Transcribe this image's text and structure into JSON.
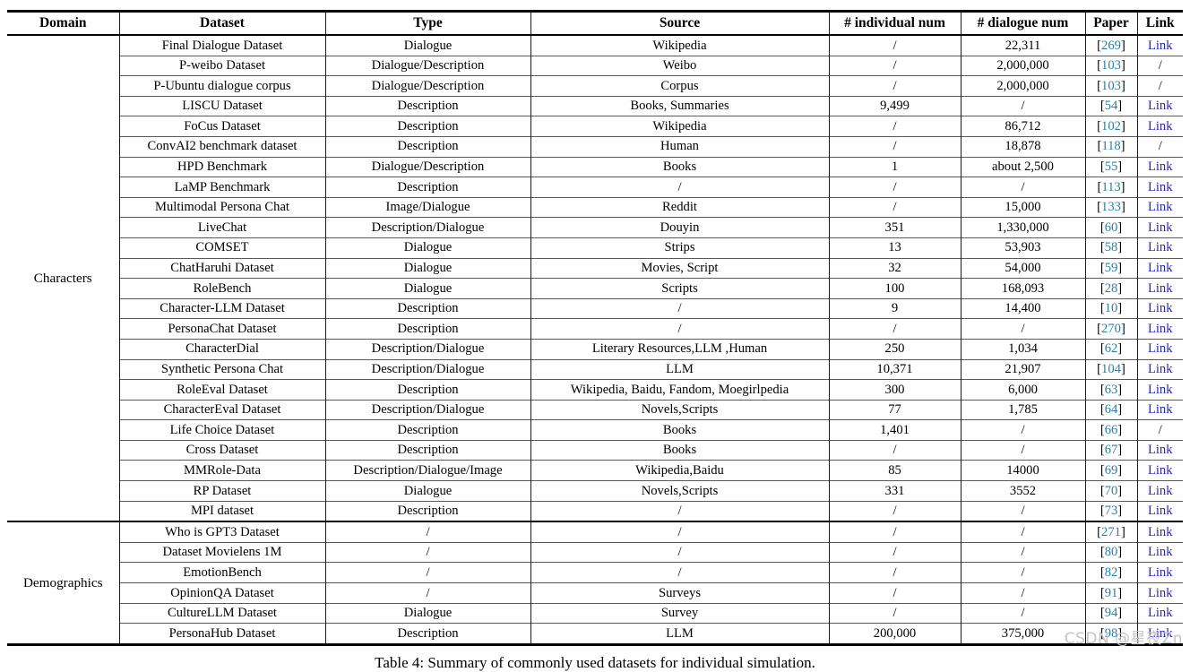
{
  "table": {
    "caption": "Table 4: Summary of commonly used datasets for individual simulation.",
    "columns": [
      "Domain",
      "Dataset",
      "Type",
      "Source",
      "# individual num",
      "# dialogue num",
      "Paper",
      "Link"
    ],
    "sections": [
      {
        "domain": "Characters",
        "rows": [
          {
            "dataset": "Final Dialogue Dataset",
            "type": "Dialogue",
            "source": "Wikipedia",
            "individual": "/",
            "dialogue": "22,311",
            "paper": "[269]",
            "link": "Link"
          },
          {
            "dataset": "P-weibo Dataset",
            "type": "Dialogue/Description",
            "source": "Weibo",
            "individual": "/",
            "dialogue": "2,000,000",
            "paper": "[103]",
            "link": "/"
          },
          {
            "dataset": "P-Ubuntu dialogue corpus",
            "type": "Dialogue/Description",
            "source": "Corpus",
            "individual": "/",
            "dialogue": "2,000,000",
            "paper": "[103]",
            "link": "/"
          },
          {
            "dataset": "LISCU Dataset",
            "type": "Description",
            "source": "Books, Summaries",
            "individual": "9,499",
            "dialogue": "/",
            "paper": "[54]",
            "link": "Link"
          },
          {
            "dataset": "FoCus Dataset",
            "type": "Description",
            "source": "Wikipedia",
            "individual": "/",
            "dialogue": "86,712",
            "paper": "[102]",
            "link": "Link"
          },
          {
            "dataset": "ConvAI2 benchmark dataset",
            "type": "Description",
            "source": "Human",
            "individual": "/",
            "dialogue": "18,878",
            "paper": "[118]",
            "link": "/"
          },
          {
            "dataset": "HPD Benchmark",
            "type": "Dialogue/Description",
            "source": "Books",
            "individual": "1",
            "dialogue": "about 2,500",
            "paper": "[55]",
            "link": "Link"
          },
          {
            "dataset": "LaMP Benchmark",
            "type": "Description",
            "source": "/",
            "individual": "/",
            "dialogue": "/",
            "paper": "[113]",
            "link": "Link"
          },
          {
            "dataset": "Multimodal Persona Chat",
            "type": "Image/Dialogue",
            "source": "Reddit",
            "individual": "/",
            "dialogue": "15,000",
            "paper": "[133]",
            "link": "Link"
          },
          {
            "dataset": "LiveChat",
            "type": "Description/Dialogue",
            "source": "Douyin",
            "individual": "351",
            "dialogue": "1,330,000",
            "paper": "[60]",
            "link": "Link"
          },
          {
            "dataset": "COMSET",
            "type": "Dialogue",
            "source": "Strips",
            "individual": "13",
            "dialogue": "53,903",
            "paper": "[58]",
            "link": "Link"
          },
          {
            "dataset": "ChatHaruhi Dataset",
            "type": "Dialogue",
            "source": "Movies, Script",
            "individual": "32",
            "dialogue": "54,000",
            "paper": "[59]",
            "link": "Link"
          },
          {
            "dataset": "RoleBench",
            "type": "Dialogue",
            "source": "Scripts",
            "individual": "100",
            "dialogue": "168,093",
            "paper": "[28]",
            "link": "Link"
          },
          {
            "dataset": "Character-LLM Dataset",
            "type": "Description",
            "source": "/",
            "individual": "9",
            "dialogue": "14,400",
            "paper": "[10]",
            "link": "Link"
          },
          {
            "dataset": "PersonaChat Dataset",
            "type": "Description",
            "source": "/",
            "individual": "/",
            "dialogue": "/",
            "paper": "[270]",
            "link": "Link"
          },
          {
            "dataset": "CharacterDial",
            "type": "Description/Dialogue",
            "source": "Literary Resources,LLM ,Human",
            "individual": "250",
            "dialogue": "1,034",
            "paper": "[62]",
            "link": "Link"
          },
          {
            "dataset": "Synthetic Persona Chat",
            "type": "Description/Dialogue",
            "source": "LLM",
            "individual": "10,371",
            "dialogue": "21,907",
            "paper": "[104]",
            "link": "Link"
          },
          {
            "dataset": "RoleEval Dataset",
            "type": "Description",
            "source": "Wikipedia, Baidu, Fandom, Moegirlpedia",
            "individual": "300",
            "dialogue": "6,000",
            "paper": "[63]",
            "link": "Link"
          },
          {
            "dataset": "CharacterEval Dataset",
            "type": "Description/Dialogue",
            "source": "Novels,Scripts",
            "individual": "77",
            "dialogue": "1,785",
            "paper": "[64]",
            "link": "Link"
          },
          {
            "dataset": "Life Choice Dataset",
            "type": "Description",
            "source": "Books",
            "individual": "1,401",
            "dialogue": "/",
            "paper": "[66]",
            "link": "/"
          },
          {
            "dataset": "Cross Dataset",
            "type": "Description",
            "source": "Books",
            "individual": "/",
            "dialogue": "/",
            "paper": "[67]",
            "link": "Link"
          },
          {
            "dataset": "MMRole-Data",
            "type": "Description/Dialogue/Image",
            "source": "Wikipedia,Baidu",
            "individual": "85",
            "dialogue": "14000",
            "paper": "[69]",
            "link": "Link"
          },
          {
            "dataset": "RP Dataset",
            "type": "Dialogue",
            "source": "Novels,Scripts",
            "individual": "331",
            "dialogue": "3552",
            "paper": "[70]",
            "link": "Link"
          },
          {
            "dataset": "MPI dataset",
            "type": "Description",
            "source": "/",
            "individual": "/",
            "dialogue": "/",
            "paper": "[73]",
            "link": "Link"
          }
        ]
      },
      {
        "domain": "Demographics",
        "rows": [
          {
            "dataset": "Who is GPT3 Dataset",
            "type": "/",
            "source": "/",
            "individual": "/",
            "dialogue": "/",
            "paper": "[271]",
            "link": "Link"
          },
          {
            "dataset": "Dataset Movielens 1M",
            "type": "/",
            "source": "/",
            "individual": "/",
            "dialogue": "/",
            "paper": "[80]",
            "link": "Link"
          },
          {
            "dataset": "EmotionBench",
            "type": "/",
            "source": "/",
            "individual": "/",
            "dialogue": "/",
            "paper": "[82]",
            "link": "Link"
          },
          {
            "dataset": "OpinionQA Dataset",
            "type": "/",
            "source": "Surveys",
            "individual": "/",
            "dialogue": "/",
            "paper": "[91]",
            "link": "Link"
          },
          {
            "dataset": "CultureLLM Dataset",
            "type": "Dialogue",
            "source": "Survey",
            "individual": "/",
            "dialogue": "/",
            "paper": "[94]",
            "link": "Link"
          },
          {
            "dataset": "PersonaHub Dataset",
            "type": "Description",
            "source": "LLM",
            "individual": "200,000",
            "dialogue": "375,000",
            "paper": "[98]",
            "link": "Link"
          }
        ]
      }
    ]
  },
  "watermark": "CSDN @星夜Zn",
  "colors": {
    "citation": "#2980A9",
    "link": "#2522DD",
    "watermark": "#C5C5C5"
  }
}
